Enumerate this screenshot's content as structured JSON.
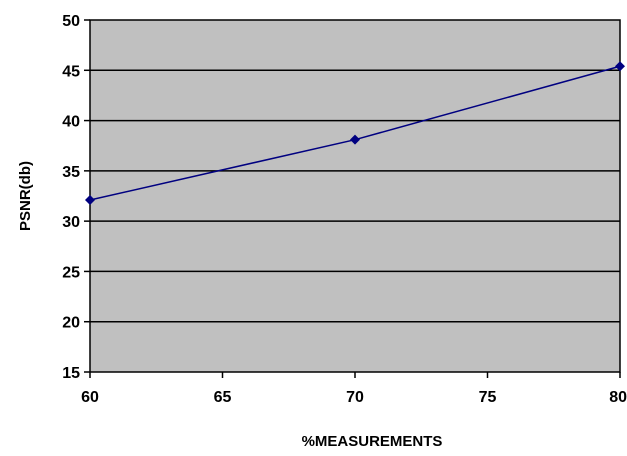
{
  "chart_data": {
    "type": "line",
    "title": "",
    "xlabel": "%MEASUREMENTS",
    "ylabel": "PSNR(db)",
    "xlim": [
      60,
      80
    ],
    "ylim": [
      15,
      50
    ],
    "x_ticks": [
      "60",
      "65",
      "70",
      "75",
      "80"
    ],
    "y_ticks": [
      "15",
      "20",
      "25",
      "30",
      "35",
      "40",
      "45",
      "50"
    ],
    "grid": true,
    "legend": "none",
    "series": [
      {
        "x": [
          60,
          70,
          80
        ],
        "values": [
          32.1,
          38.1,
          45.4
        ]
      }
    ],
    "colors": {
      "plot_background": "#c0c0c0",
      "gridline": "#000000",
      "series": "#000080"
    }
  }
}
